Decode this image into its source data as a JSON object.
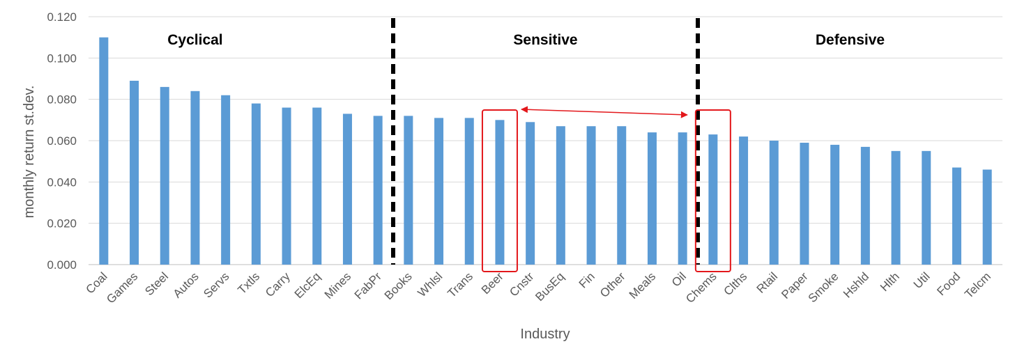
{
  "chart_data": {
    "type": "bar",
    "xlabel": "Industry",
    "ylabel": "monthly return st.dev.",
    "ylim": [
      0,
      0.12
    ],
    "yticks": [
      "0.000",
      "0.020",
      "0.040",
      "0.060",
      "0.080",
      "0.100",
      "0.120"
    ],
    "grid": true,
    "categories": [
      "Coal",
      "Games",
      "Steel",
      "Autos",
      "Servs",
      "Txtls",
      "Carry",
      "ElcEq",
      "Mines",
      "FabPr",
      "Books",
      "Whlsl",
      "Trans",
      "Beer",
      "Cnstr",
      "BusEq",
      "Fin",
      "Other",
      "Meals",
      "Oil",
      "Chems",
      "Clths",
      "Rtail",
      "Paper",
      "Smoke",
      "Hshld",
      "Hlth",
      "Util",
      "Food",
      "Telcm"
    ],
    "values": [
      0.11,
      0.089,
      0.086,
      0.084,
      0.082,
      0.078,
      0.076,
      0.076,
      0.073,
      0.072,
      0.072,
      0.071,
      0.071,
      0.07,
      0.069,
      0.067,
      0.067,
      0.067,
      0.064,
      0.064,
      0.063,
      0.062,
      0.06,
      0.059,
      0.058,
      0.057,
      0.055,
      0.055,
      0.047,
      0.046
    ],
    "regions": [
      {
        "label": "Cyclical",
        "start_index": 0,
        "end_index": 9
      },
      {
        "label": "Sensitive",
        "start_index": 10,
        "end_index": 19
      },
      {
        "label": "Defensive",
        "start_index": 20,
        "end_index": 29
      }
    ],
    "highlighted": [
      "Beer",
      "Chems"
    ],
    "colors": {
      "bar": "#5B9BD5",
      "divider": "#000000",
      "highlight": "#E3171B",
      "grid": "#D9D9D9",
      "axis": "#BFBFBF"
    }
  }
}
